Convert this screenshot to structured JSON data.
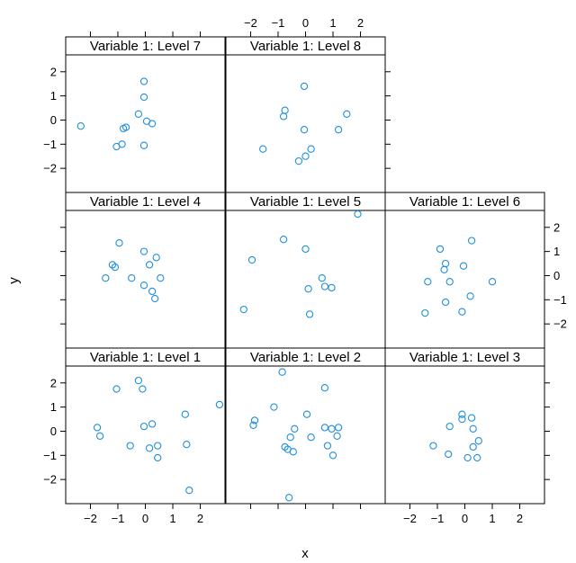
{
  "chart_data": {
    "type": "scatter",
    "xlabel": "x",
    "ylabel": "y",
    "xlim": [
      -2.9,
      2.9
    ],
    "ylim": [
      -3.0,
      2.7
    ],
    "x_ticks": [
      -2,
      -1,
      0,
      1,
      2
    ],
    "y_ticks": [
      -2,
      -1,
      0,
      1,
      2
    ],
    "point_color": "#1f8fdd",
    "panels": [
      {
        "name": "Variable 1: Level 7",
        "row": 0,
        "col": 0,
        "points": [
          [
            -2.35,
            -0.25
          ],
          [
            -1.05,
            -1.1
          ],
          [
            -0.85,
            -1.0
          ],
          [
            -0.8,
            -0.35
          ],
          [
            -0.7,
            -0.3
          ],
          [
            -0.25,
            0.25
          ],
          [
            -0.05,
            1.6
          ],
          [
            -0.05,
            0.95
          ],
          [
            0.05,
            -0.05
          ],
          [
            0.25,
            -0.15
          ],
          [
            -0.05,
            -1.05
          ]
        ]
      },
      {
        "name": "Variable 1: Level 8",
        "row": 0,
        "col": 1,
        "points": [
          [
            -1.55,
            -1.2
          ],
          [
            -0.8,
            0.15
          ],
          [
            -0.75,
            0.4
          ],
          [
            -0.25,
            -1.7
          ],
          [
            -0.05,
            -0.4
          ],
          [
            -0.05,
            1.4
          ],
          [
            0.0,
            -1.5
          ],
          [
            0.2,
            -1.2
          ],
          [
            1.2,
            -0.4
          ],
          [
            1.5,
            0.25
          ]
        ]
      },
      {
        "name": "Variable 1: Level 4",
        "row": 1,
        "col": 0,
        "points": [
          [
            -1.45,
            -0.1
          ],
          [
            -1.2,
            0.45
          ],
          [
            -1.1,
            0.35
          ],
          [
            -0.95,
            1.35
          ],
          [
            -0.5,
            -0.1
          ],
          [
            -0.05,
            1.0
          ],
          [
            -0.05,
            -0.4
          ],
          [
            0.15,
            0.45
          ],
          [
            0.25,
            -0.65
          ],
          [
            0.35,
            -0.95
          ],
          [
            0.4,
            0.75
          ],
          [
            0.55,
            -0.1
          ]
        ]
      },
      {
        "name": "Variable 1: Level 5",
        "row": 1,
        "col": 1,
        "points": [
          [
            -2.25,
            -1.4
          ],
          [
            -1.95,
            0.65
          ],
          [
            -0.8,
            1.5
          ],
          [
            0.0,
            1.1
          ],
          [
            0.1,
            -0.55
          ],
          [
            0.15,
            -1.6
          ],
          [
            0.6,
            -0.1
          ],
          [
            0.7,
            -0.45
          ],
          [
            0.95,
            -0.5
          ],
          [
            1.9,
            2.55
          ]
        ]
      },
      {
        "name": "Variable 1: Level 6",
        "row": 1,
        "col": 2,
        "points": [
          [
            -1.45,
            -1.55
          ],
          [
            -1.35,
            -0.25
          ],
          [
            -0.9,
            1.1
          ],
          [
            -0.75,
            0.25
          ],
          [
            -0.7,
            -1.1
          ],
          [
            -0.7,
            0.5
          ],
          [
            -0.55,
            -0.25
          ],
          [
            -0.1,
            -1.5
          ],
          [
            -0.05,
            0.4
          ],
          [
            0.2,
            -0.85
          ],
          [
            0.25,
            1.45
          ],
          [
            1.0,
            -0.25
          ]
        ]
      },
      {
        "name": "Variable 1: Level 1",
        "row": 2,
        "col": 0,
        "points": [
          [
            -1.75,
            0.15
          ],
          [
            -1.65,
            -0.2
          ],
          [
            -1.05,
            1.75
          ],
          [
            -0.55,
            -0.6
          ],
          [
            -0.25,
            2.1
          ],
          [
            -0.1,
            1.75
          ],
          [
            -0.05,
            0.2
          ],
          [
            0.15,
            -0.7
          ],
          [
            0.25,
            0.3
          ],
          [
            0.45,
            -0.6
          ],
          [
            0.45,
            -1.1
          ],
          [
            1.45,
            0.7
          ],
          [
            1.5,
            -0.55
          ],
          [
            1.6,
            -2.45
          ],
          [
            2.7,
            1.1
          ]
        ]
      },
      {
        "name": "Variable 1: Level 2",
        "row": 2,
        "col": 1,
        "points": [
          [
            -1.9,
            0.25
          ],
          [
            -1.85,
            0.45
          ],
          [
            -1.15,
            1.0
          ],
          [
            -0.85,
            2.45
          ],
          [
            -0.75,
            -0.65
          ],
          [
            -0.65,
            -0.75
          ],
          [
            -0.6,
            -2.75
          ],
          [
            -0.55,
            -0.25
          ],
          [
            -0.45,
            -0.85
          ],
          [
            -0.4,
            0.1
          ],
          [
            0.05,
            0.7
          ],
          [
            0.2,
            -0.25
          ],
          [
            0.7,
            1.8
          ],
          [
            0.7,
            0.15
          ],
          [
            0.8,
            -0.6
          ],
          [
            0.95,
            0.1
          ],
          [
            1.0,
            -1.0
          ],
          [
            1.15,
            -0.2
          ],
          [
            1.2,
            0.15
          ]
        ]
      },
      {
        "name": "Variable 1: Level 3",
        "row": 2,
        "col": 2,
        "points": [
          [
            -1.15,
            -0.6
          ],
          [
            -0.6,
            -0.95
          ],
          [
            -0.55,
            0.2
          ],
          [
            -0.1,
            0.7
          ],
          [
            -0.1,
            0.5
          ],
          [
            0.1,
            -1.1
          ],
          [
            0.25,
            0.55
          ],
          [
            0.3,
            0.1
          ],
          [
            0.3,
            -0.65
          ],
          [
            0.45,
            -1.1
          ],
          [
            0.5,
            -0.4
          ]
        ]
      }
    ]
  }
}
